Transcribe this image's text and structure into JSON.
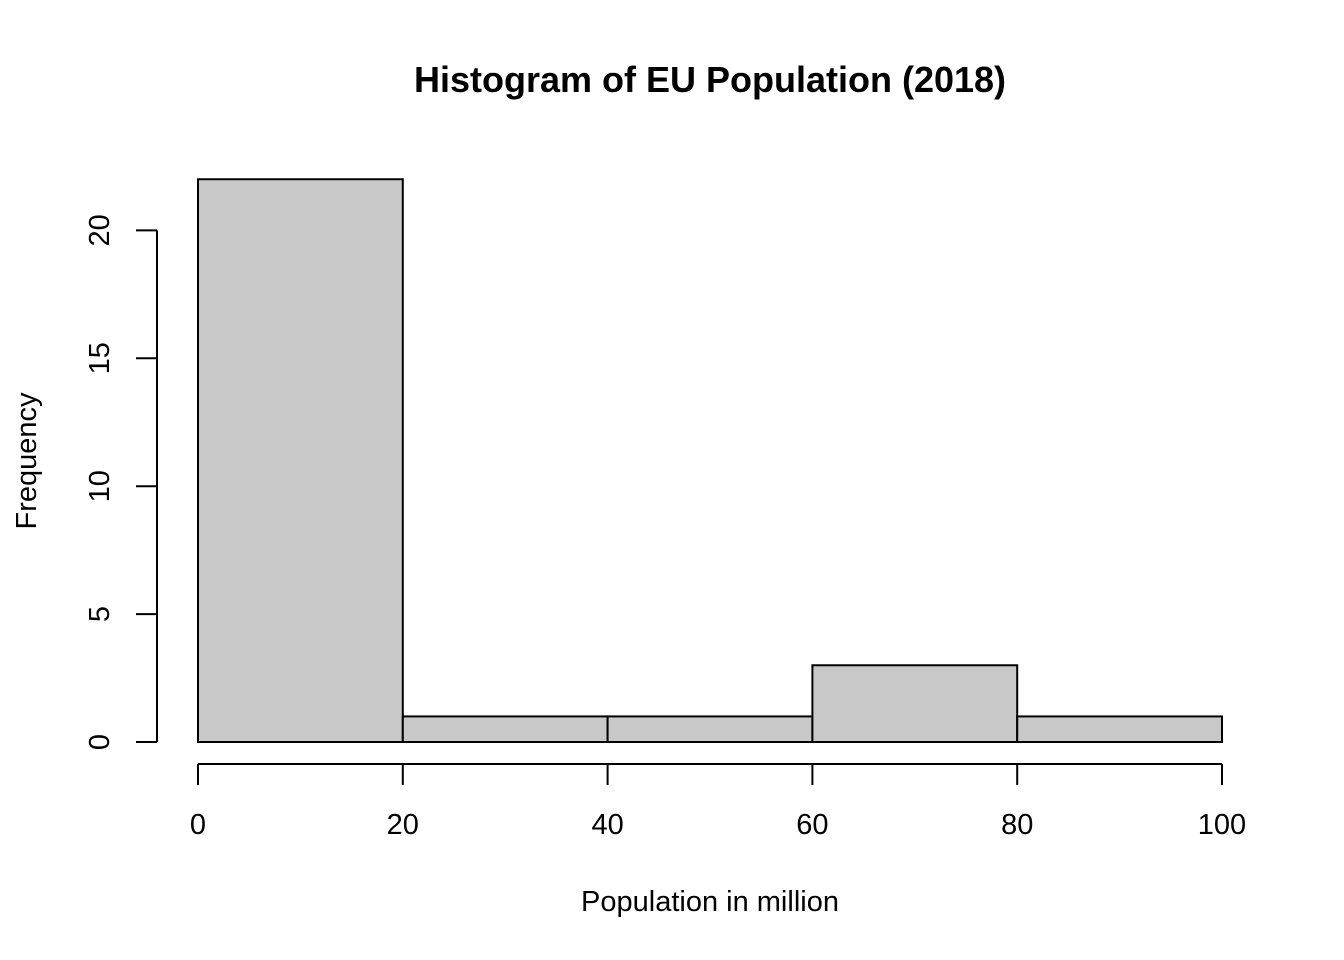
{
  "chart_data": {
    "type": "bar",
    "title": "Histogram of EU Population (2018)",
    "xlabel": "Population in million",
    "ylabel": "Frequency",
    "bins": [
      {
        "start": 0,
        "end": 20,
        "count": 22
      },
      {
        "start": 20,
        "end": 40,
        "count": 1
      },
      {
        "start": 40,
        "end": 60,
        "count": 1
      },
      {
        "start": 60,
        "end": 80,
        "count": 3
      },
      {
        "start": 80,
        "end": 100,
        "count": 1
      }
    ],
    "categories": [
      "0-20",
      "20-40",
      "40-60",
      "60-80",
      "80-100"
    ],
    "values": [
      22,
      1,
      1,
      3,
      1
    ],
    "xlim": [
      0,
      100
    ],
    "ylim": [
      0,
      22
    ],
    "x_ticks": [
      "0",
      "20",
      "40",
      "60",
      "80",
      "100"
    ],
    "y_ticks": [
      "0",
      "5",
      "10",
      "15",
      "20"
    ],
    "grid": false,
    "legend": "none",
    "bar_fill": "#c8c8c8",
    "bar_stroke": "#000000"
  }
}
